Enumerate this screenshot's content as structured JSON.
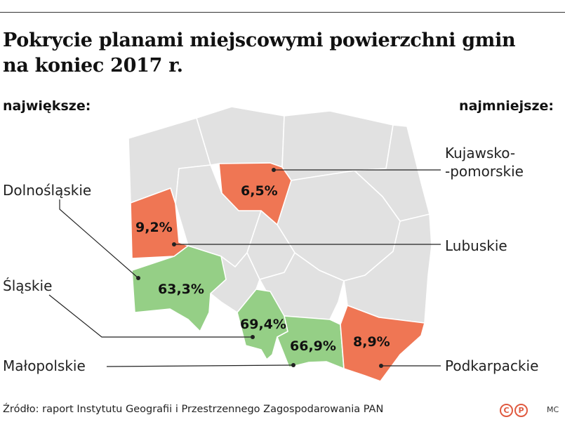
{
  "title_line1": "Pokrycie planami miejscowymi powierzchni gmin",
  "title_line2": "na koniec 2017 r.",
  "header_left": "największe:",
  "header_right": "najmniejsze:",
  "colors": {
    "largest": "#95cf86",
    "smallest": "#ef7654",
    "other": "#e1e1e1",
    "border": "#ffffff"
  },
  "regions": [
    {
      "name": "Kujawsko-pomorskie",
      "label_line1": "Kujawsko-",
      "label_line2": "-pomorskie",
      "value": "6,5%",
      "category": "smallest"
    },
    {
      "name": "Lubuskie",
      "label": "Lubuskie",
      "value": "9,2%",
      "category": "smallest"
    },
    {
      "name": "Podkarpackie",
      "label": "Podkarpackie",
      "value": "8,9%",
      "category": "smallest"
    },
    {
      "name": "Dolnośląskie",
      "label": "Dolnośląskie",
      "value": "63,3%",
      "category": "largest"
    },
    {
      "name": "Śląskie",
      "label": "Śląskie",
      "value": "69,4%",
      "category": "largest"
    },
    {
      "name": "Małopolskie",
      "label": "Małopolskie",
      "value": "66,9%",
      "category": "largest"
    }
  ],
  "source": "Źródło: raport Instytutu Geografii i Przestrzennego Zagospodarowania PAN",
  "copyright_marks": [
    "C",
    "P"
  ],
  "author": "MC"
}
